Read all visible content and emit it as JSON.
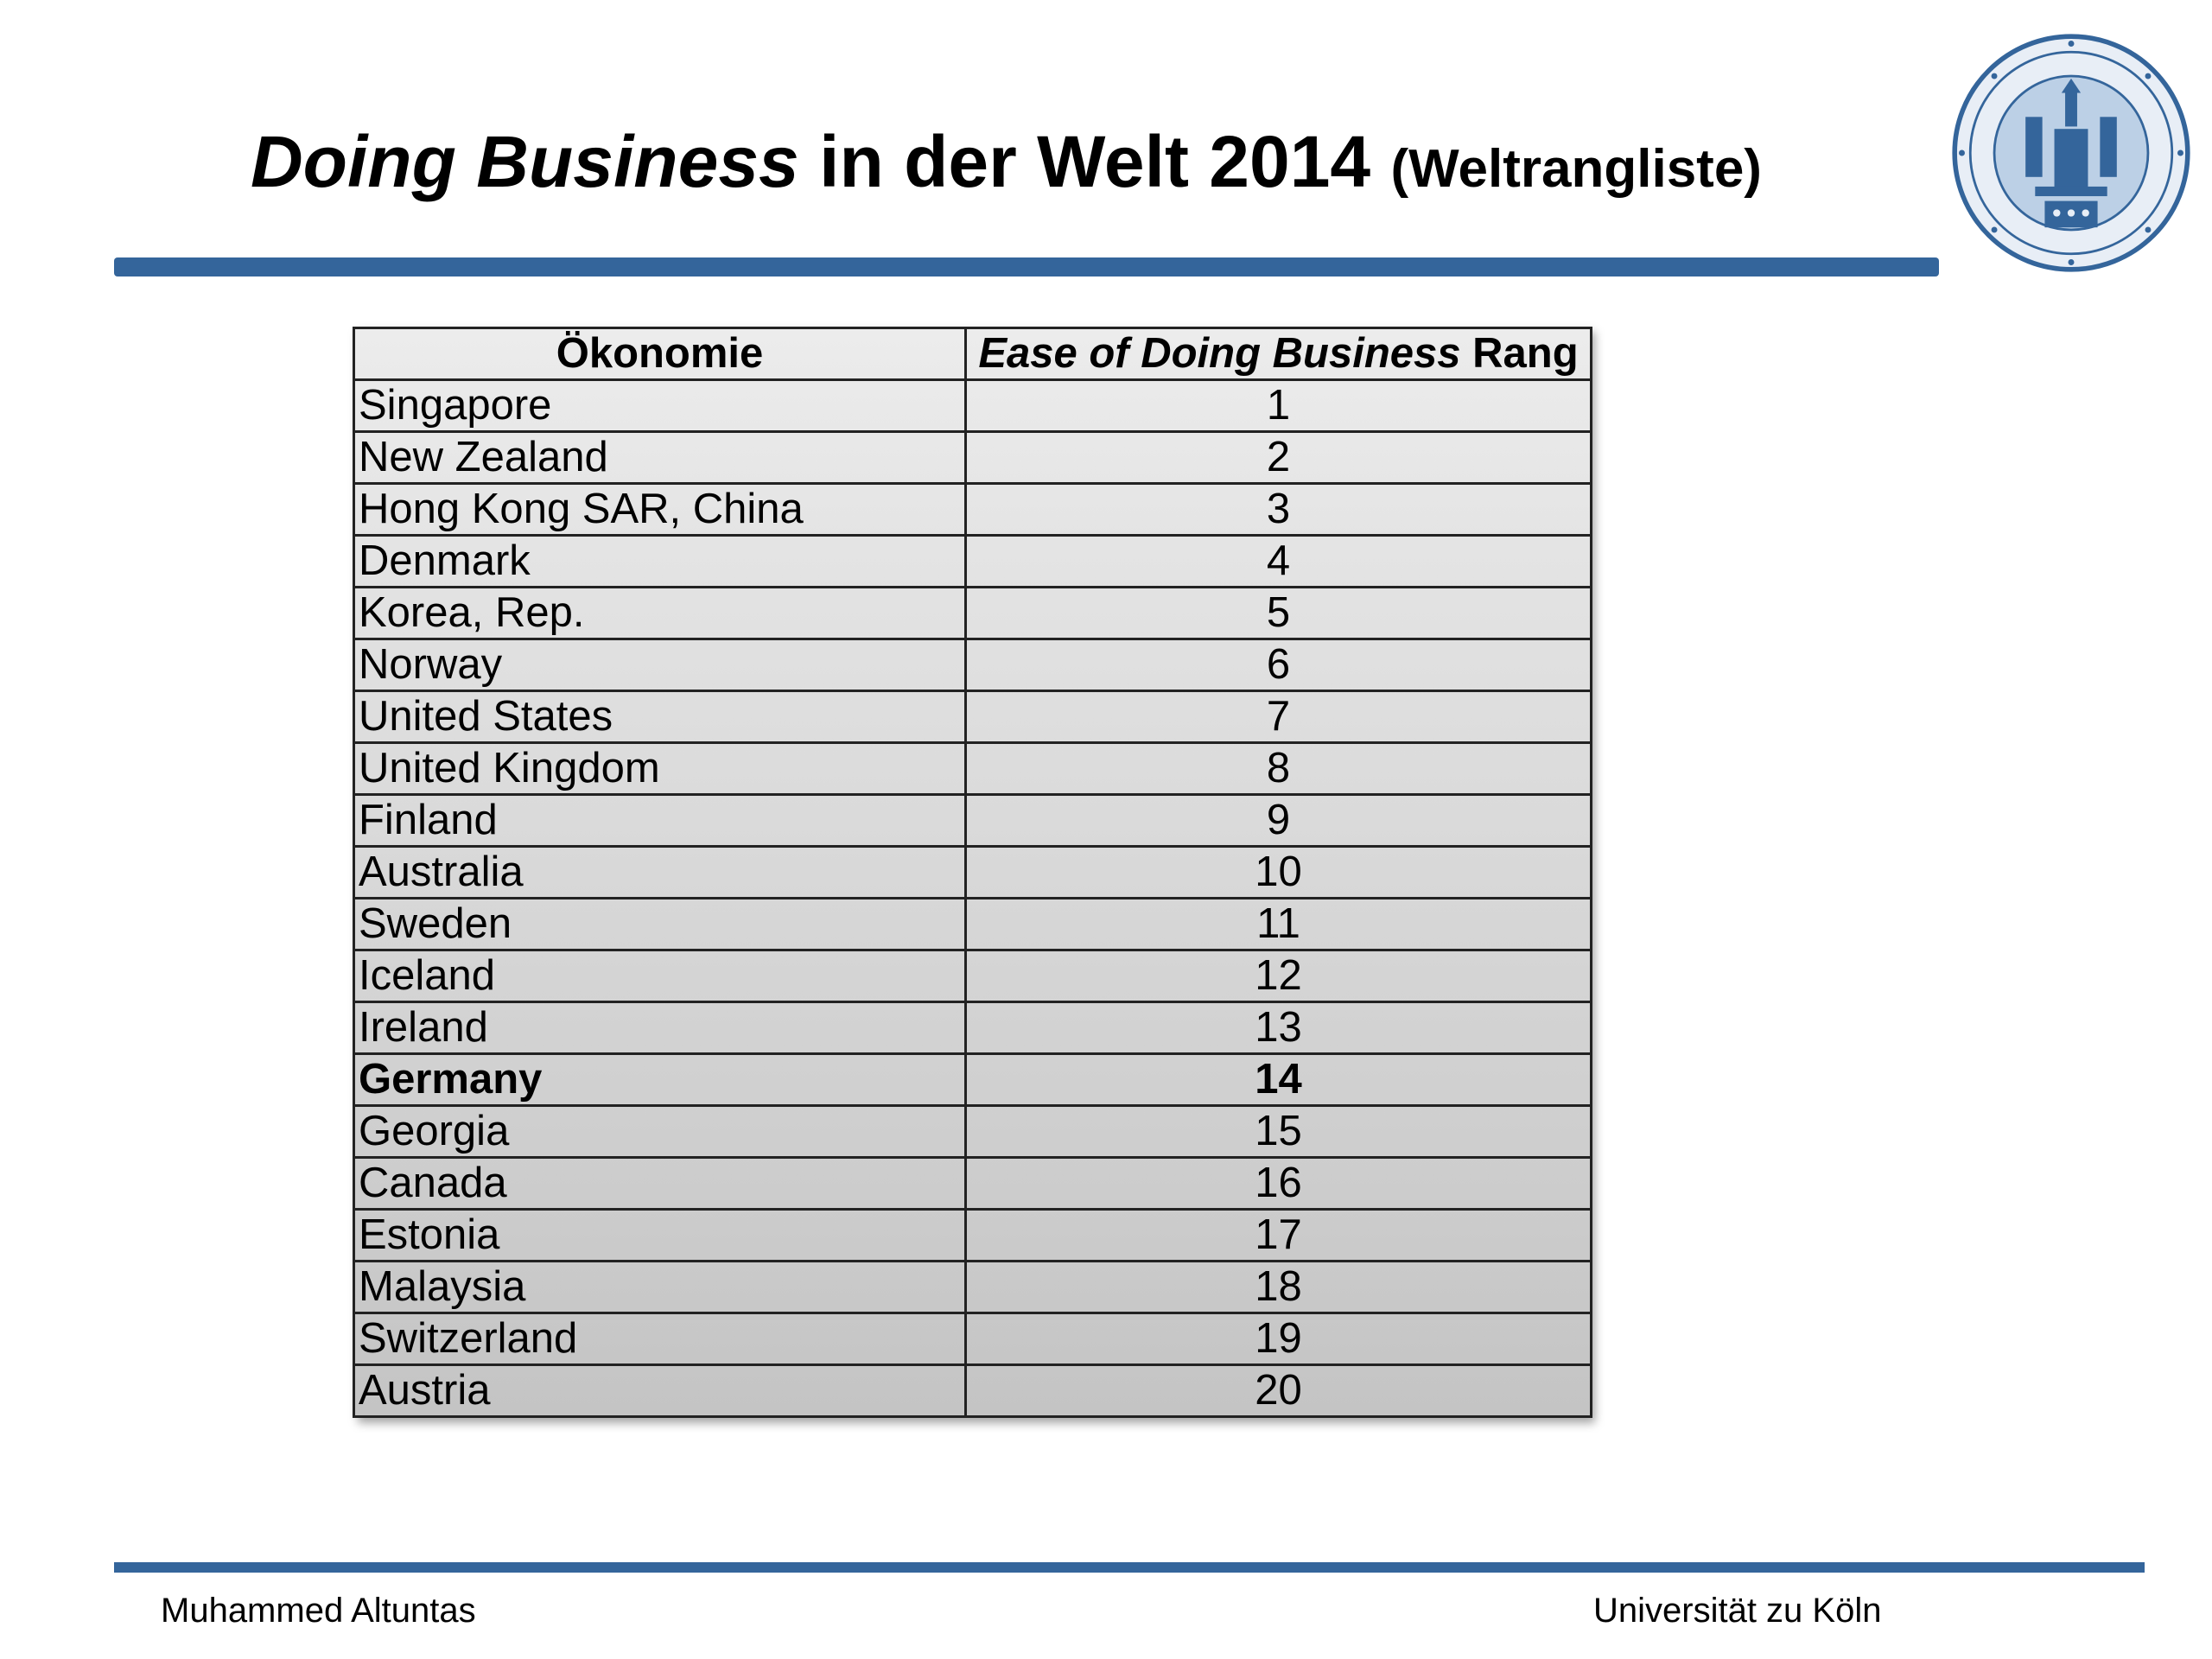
{
  "header": {
    "title_italic": "Doing Business",
    "title_main": " in der Welt 2014 ",
    "title_suffix": "(Weltrangliste)",
    "seal_icon": "university-seal-icon",
    "accent_color": "#34659b"
  },
  "table": {
    "headers": {
      "col1": "Ökonomie",
      "col2_italic": "Ease of Doing Business",
      "col2_rest": " Rang"
    },
    "rows": [
      {
        "name": "Singapore",
        "rank": "1"
      },
      {
        "name": "New Zealand",
        "rank": "2"
      },
      {
        "name": "Hong Kong SAR, China",
        "rank": "3"
      },
      {
        "name": "Denmark",
        "rank": "4"
      },
      {
        "name": "Korea, Rep.",
        "rank": "5"
      },
      {
        "name": "Norway",
        "rank": "6"
      },
      {
        "name": "United States",
        "rank": "7"
      },
      {
        "name": "United Kingdom",
        "rank": "8"
      },
      {
        "name": "Finland",
        "rank": "9"
      },
      {
        "name": "Australia",
        "rank": "10"
      },
      {
        "name": "Sweden",
        "rank": "11"
      },
      {
        "name": "Iceland",
        "rank": "12"
      },
      {
        "name": "Ireland",
        "rank": "13"
      },
      {
        "name": "Germany",
        "rank": "14",
        "bold": true
      },
      {
        "name": "Georgia",
        "rank": "15"
      },
      {
        "name": "Canada",
        "rank": "16"
      },
      {
        "name": "Estonia",
        "rank": "17"
      },
      {
        "name": "Malaysia",
        "rank": "18"
      },
      {
        "name": "Switzerland",
        "rank": "19"
      },
      {
        "name": "Austria",
        "rank": "20"
      }
    ]
  },
  "footer": {
    "author": "Muhammed Altuntas",
    "institution": "Universität zu Köln"
  }
}
